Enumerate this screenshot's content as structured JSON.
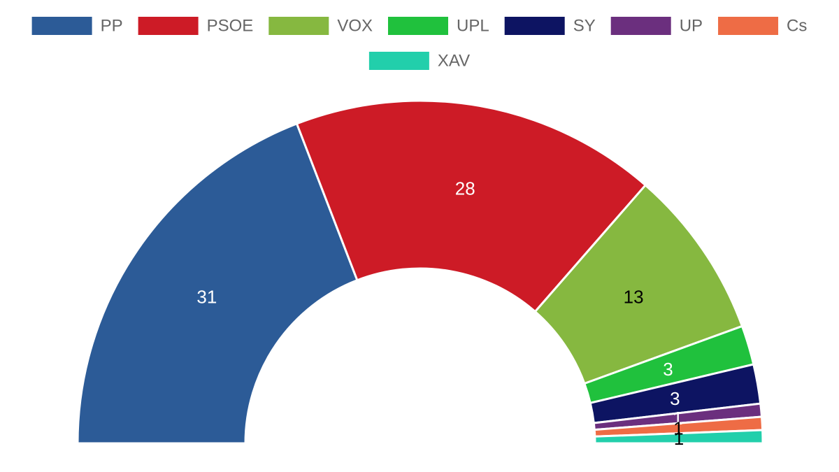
{
  "chart_data": {
    "type": "pie",
    "variant": "half-doughnut (parliament)",
    "categories": [
      "PP",
      "PSOE",
      "VOX",
      "UPL",
      "SY",
      "UP",
      "Cs",
      "XAV"
    ],
    "values": [
      31,
      28,
      13,
      3,
      3,
      1,
      1,
      1
    ],
    "colors": [
      "#2c5b97",
      "#cd1b26",
      "#86b840",
      "#20c13d",
      "#0d1462",
      "#6b2f7e",
      "#ee6c45",
      "#22cfab"
    ],
    "label_colors": [
      "#ffffff",
      "#ffffff",
      "#000000",
      "#ffffff",
      "#ffffff",
      "#ffffff",
      "#000000",
      "#000000"
    ],
    "legend": {
      "position": "top",
      "entries": [
        "PP",
        "PSOE",
        "VOX",
        "UPL",
        "SY",
        "UP",
        "Cs",
        "XAV"
      ]
    },
    "title": ""
  }
}
